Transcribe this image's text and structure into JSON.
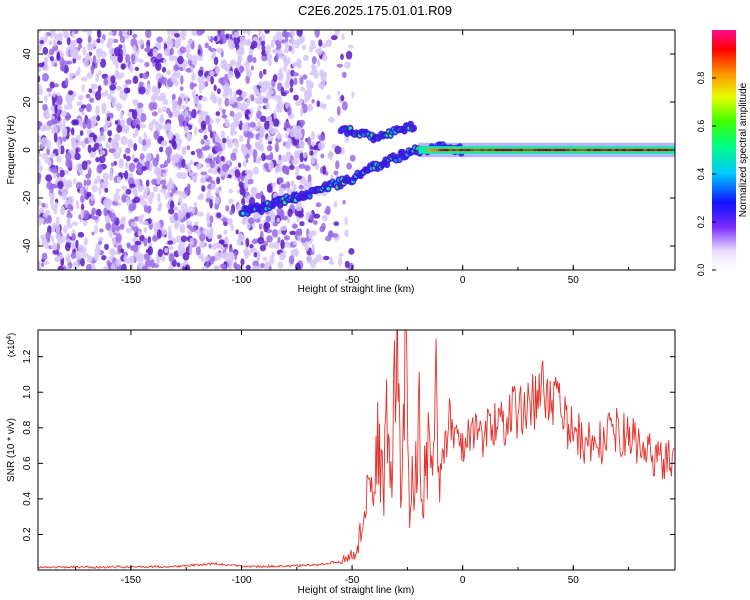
{
  "title": "C2E6.2025.175.01.01.R09",
  "colors": {
    "snr_line": "#e8302a",
    "scatter_base": "#5a1cc8",
    "frame": "#000000",
    "background": "#ffffff"
  },
  "chart_data": [
    {
      "type": "heatmap",
      "title": "C2E6.2025.175.01.01.R09",
      "xlabel": "Height of straight line (km)",
      "ylabel": "Frequency (Hz)",
      "xlim": [
        -192,
        96
      ],
      "ylim": [
        -50,
        50
      ],
      "x_ticks": [
        "-150",
        "-100",
        "-50",
        "0",
        "50"
      ],
      "y_ticks": [
        "-40",
        "-20",
        "0",
        "20",
        "40"
      ],
      "colorbar": {
        "label": "Normalized spectral amplitude",
        "ticks": [
          "0.0",
          "0.2",
          "0.4",
          "0.6",
          "0.8"
        ],
        "range": [
          0,
          1
        ]
      },
      "features": [
        {
          "description": "scattered noise",
          "x_range": [
            -192,
            -50
          ],
          "y_range": [
            -50,
            50
          ],
          "amplitude": 0.15
        },
        {
          "description": "lower drifting trace",
          "points": [
            [
              -100,
              -26
            ],
            [
              -90,
              -24
            ],
            [
              -80,
              -21
            ],
            [
              -70,
              -18
            ],
            [
              -60,
              -15
            ],
            [
              -50,
              -12
            ],
            [
              -40,
              -7
            ],
            [
              -30,
              -3
            ],
            [
              -20,
              0
            ],
            [
              -10,
              1
            ],
            [
              0,
              0
            ]
          ],
          "amplitude": 0.3
        },
        {
          "description": "upper trace",
          "points": [
            [
              -55,
              8
            ],
            [
              -45,
              7
            ],
            [
              -38,
              5
            ],
            [
              -30,
              8
            ],
            [
              -22,
              10
            ]
          ],
          "amplitude": 0.3
        },
        {
          "description": "steady carrier",
          "points": [
            [
              -20,
              0
            ],
            [
              0,
              0
            ],
            [
              20,
              0
            ],
            [
              40,
              0
            ],
            [
              60,
              0
            ],
            [
              80,
              0
            ],
            [
              96,
              0
            ]
          ],
          "amplitude": 0.95
        }
      ]
    },
    {
      "type": "line",
      "xlabel": "Height of straight line (km)",
      "ylabel": "SNR (10 * v/v)",
      "y_scale_label": "(x10",
      "y_scale_exp": "4",
      "y_scale_close": ")",
      "xlim": [
        -192,
        96
      ],
      "ylim": [
        0,
        1.35
      ],
      "x_ticks": [
        "-150",
        "-100",
        "-50",
        "0",
        "50"
      ],
      "y_ticks": [
        "0.2",
        "0.4",
        "0.6",
        "0.8",
        "1.0",
        "1.2"
      ],
      "series": [
        {
          "x": [
            -192,
            -170,
            -150,
            -130,
            -112,
            -100,
            -80,
            -65,
            -55,
            -48,
            -44,
            -40,
            -38,
            -36,
            -34,
            -32,
            -30,
            -28,
            -26,
            -24,
            -22,
            -20,
            -18,
            -16,
            -14,
            -12,
            -10,
            -8,
            -6,
            -4,
            -2,
            0,
            5,
            10,
            15,
            20,
            25,
            30,
            35,
            40,
            45,
            50,
            55,
            60,
            65,
            70,
            75,
            80,
            85,
            90,
            96
          ],
          "y": [
            0.015,
            0.016,
            0.018,
            0.02,
            0.035,
            0.02,
            0.02,
            0.03,
            0.05,
            0.1,
            0.35,
            0.45,
            0.8,
            0.4,
            0.9,
            0.55,
            1.35,
            0.4,
            1.25,
            0.3,
            0.6,
            0.9,
            0.35,
            0.7,
            0.5,
            0.95,
            0.6,
            0.7,
            0.85,
            0.7,
            0.75,
            0.7,
            0.8,
            0.75,
            0.85,
            0.85,
            0.9,
            0.92,
            1.0,
            1.02,
            0.85,
            0.78,
            0.72,
            0.7,
            0.74,
            0.78,
            0.75,
            0.7,
            0.65,
            0.62,
            0.62
          ]
        }
      ]
    }
  ]
}
